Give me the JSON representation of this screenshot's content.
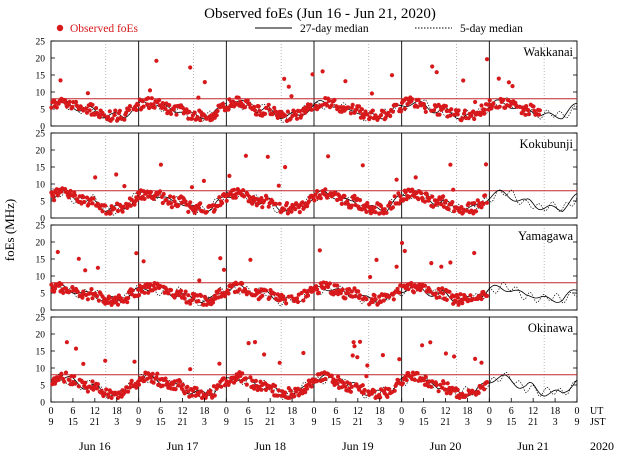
{
  "chart_data": {
    "type": "scatter",
    "title": "Observed foEs (Jun 16 - Jun 21, 2020)",
    "legend": {
      "observed": "Observed foEs",
      "median27": "27-day median",
      "median5": "5-day median"
    },
    "ylabel": "foEs (MHz)",
    "ylim": [
      0,
      25
    ],
    "yticks": [
      0,
      5,
      10,
      15,
      20,
      25
    ],
    "xlim_hours": [
      0,
      144
    ],
    "threshold_mhz": 8,
    "ut_label": "UT",
    "jst_label": "JST",
    "year_label": "2020",
    "ut_ticks": [
      "0",
      "6",
      "12",
      "18",
      "0",
      "6",
      "12",
      "18",
      "0",
      "6",
      "12",
      "18",
      "0",
      "6",
      "12",
      "18",
      "0",
      "6",
      "12",
      "18",
      "0",
      "6",
      "12",
      "18",
      "0"
    ],
    "jst_ticks": [
      "9",
      "15",
      "21",
      "3",
      "9",
      "15",
      "21",
      "3",
      "9",
      "15",
      "21",
      "3",
      "9",
      "15",
      "21",
      "3",
      "9",
      "15",
      "21",
      "3",
      "9",
      "15",
      "21",
      "3",
      "9"
    ],
    "days": [
      "Jun 16",
      "Jun 17",
      "Jun 18",
      "Jun 19",
      "Jun 20",
      "Jun 21"
    ],
    "stations": [
      {
        "name": "Wakkanai",
        "seed": 11,
        "base": 4.8,
        "amp": 2.4,
        "coverage": 0.93
      },
      {
        "name": "Kokubunji",
        "seed": 23,
        "base": 4.6,
        "amp": 2.8,
        "coverage": 0.83
      },
      {
        "name": "Yamagawa",
        "seed": 37,
        "base": 4.9,
        "amp": 2.2,
        "coverage": 0.83
      },
      {
        "name": "Okinawa",
        "seed": 53,
        "base": 4.4,
        "amp": 2.9,
        "coverage": 0.83
      }
    ]
  }
}
